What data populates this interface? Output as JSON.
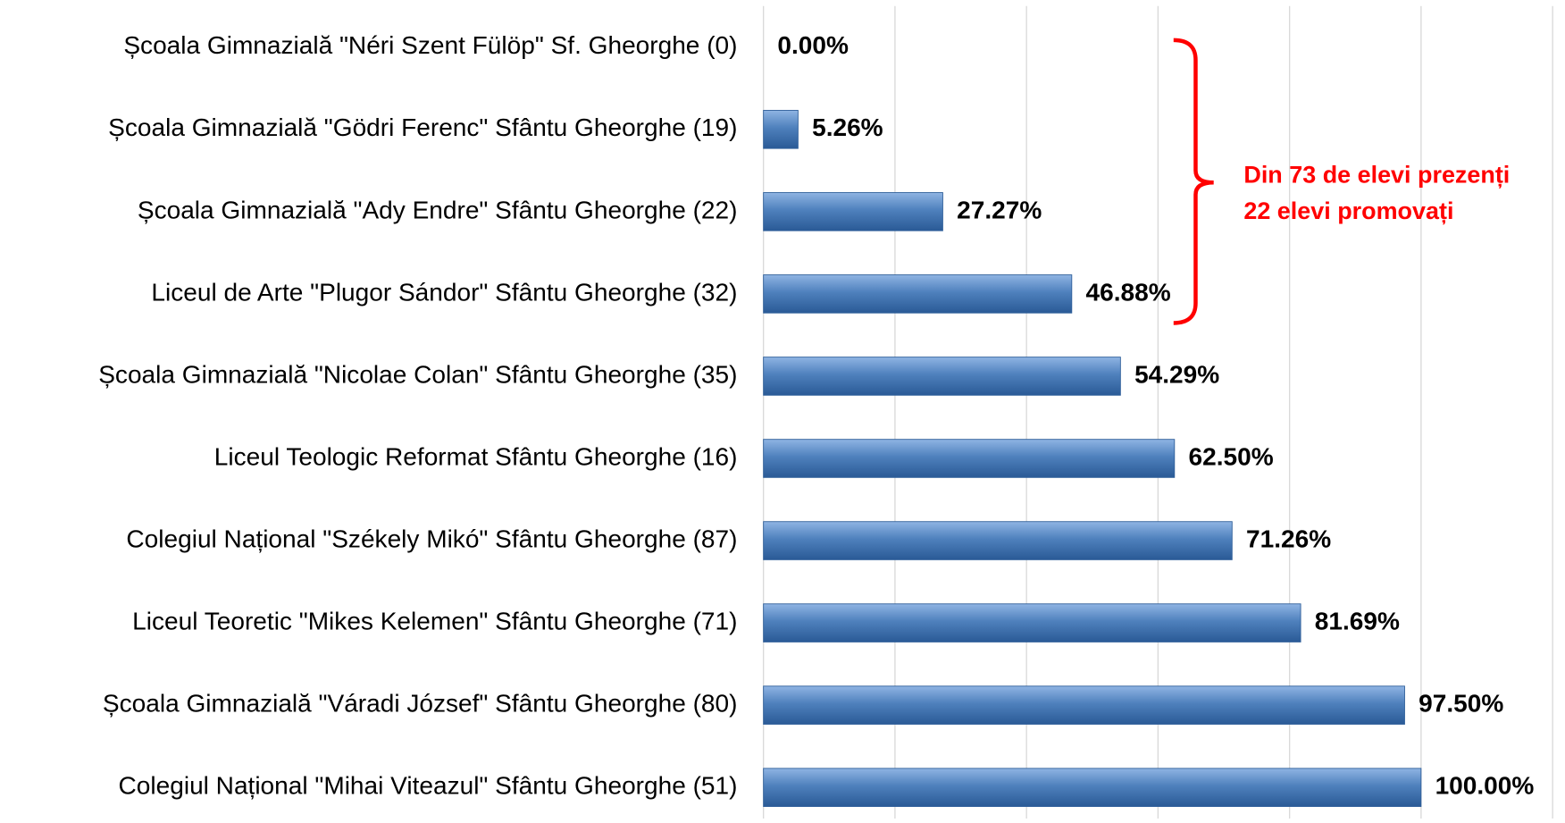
{
  "chart_data": {
    "type": "bar",
    "orientation": "horizontal",
    "categories": [
      "Școala Gimnazială \"Néri Szent Fülöp\" Sf. Gheorghe (0)",
      "Școala Gimnazială \"Gödri Ferenc\" Sfântu Gheorghe (19)",
      "Școala Gimnazială \"Ady Endre\" Sfântu Gheorghe (22)",
      "Liceul de Arte \"Plugor Sándor\" Sfântu Gheorghe (32)",
      "Școala Gimnazială \"Nicolae Colan\" Sfântu Gheorghe (35)",
      "Liceul Teologic Reformat Sfântu Gheorghe (16)",
      "Colegiul Național \"Székely Mikó\" Sfântu Gheorghe (87)",
      "Liceul Teoretic \"Mikes Kelemen\" Sfântu Gheorghe (71)",
      "Școala Gimnazială \"Váradi József\" Sfântu Gheorghe (80)",
      "Colegiul Național \"Mihai Viteazul\" Sfântu Gheorghe (51)"
    ],
    "values": [
      0,
      5.26,
      27.27,
      46.88,
      54.29,
      62.5,
      71.26,
      81.69,
      97.5,
      100
    ],
    "value_labels": [
      "0.00%",
      "5.26%",
      "27.27%",
      "46.88%",
      "54.29%",
      "62.50%",
      "71.26%",
      "81.69%",
      "97.50%",
      "100.00%"
    ],
    "color": "#4f81bd",
    "xlim": [
      0,
      120
    ],
    "xticks": [
      0,
      20,
      40,
      60,
      80,
      100,
      120
    ],
    "grid": true,
    "annotations": [
      "Din 73 de elevi prezenți",
      "22 elevi promovați"
    ]
  }
}
